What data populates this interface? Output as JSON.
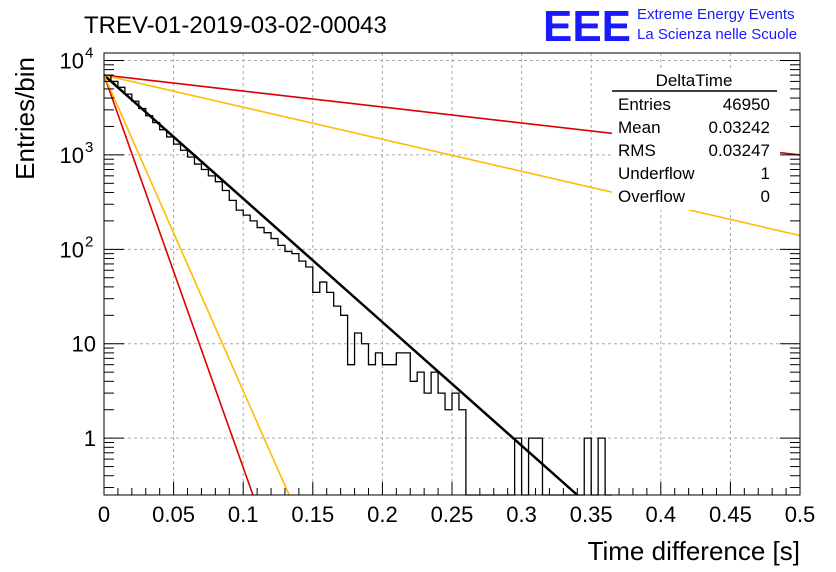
{
  "chart_data": {
    "type": "line",
    "title": "TREV-01-2019-03-02-00043",
    "xlabel": "Time difference [s]",
    "ylabel": "Entries/bin",
    "x_range": [
      0,
      0.5
    ],
    "y_range": [
      0.25,
      12000
    ],
    "y_scale": "log",
    "grid": true,
    "x_ticks": [
      "0",
      "0.05",
      "0.1",
      "0.15",
      "0.2",
      "0.25",
      "0.3",
      "0.35",
      "0.4",
      "0.45",
      "0.5"
    ],
    "x_tick_values": [
      0,
      0.05,
      0.1,
      0.15,
      0.2,
      0.25,
      0.3,
      0.35,
      0.4,
      0.45,
      0.5
    ],
    "y_ticks": [
      {
        "value": 1,
        "base": "1",
        "exp": ""
      },
      {
        "value": 10,
        "base": "10",
        "exp": ""
      },
      {
        "value": 100,
        "base": "10",
        "exp": "2"
      },
      {
        "value": 1000,
        "base": "10",
        "exp": "3"
      },
      {
        "value": 10000,
        "base": "10",
        "exp": "4"
      }
    ],
    "histogram": {
      "bin_width": 0.005,
      "x_start": 0,
      "counts": [
        7000,
        6000,
        5200,
        4400,
        3700,
        3100,
        2600,
        2200,
        1850,
        1550,
        1300,
        1120,
        950,
        800,
        700,
        600,
        520,
        420,
        330,
        260,
        230,
        200,
        170,
        150,
        130,
        110,
        95,
        90,
        75,
        65,
        35,
        45,
        35,
        25,
        20,
        6,
        13,
        10,
        6,
        8,
        6,
        6,
        8,
        8,
        4,
        5,
        3,
        5,
        3,
        2,
        3,
        2,
        0,
        0,
        0,
        0,
        0,
        0,
        0,
        1,
        0,
        1,
        1,
        0,
        0,
        0,
        0,
        0,
        0,
        1,
        0,
        1,
        0
      ]
    },
    "series": [
      {
        "label": "black fit",
        "color": "#000000",
        "x": [
          0,
          0.34
        ],
        "y": [
          7000,
          0.25
        ]
      },
      {
        "label": "red steep",
        "color": "#dd0000",
        "x": [
          0,
          0.107
        ],
        "y": [
          7000,
          0.25
        ]
      },
      {
        "label": "orange steep",
        "color": "#ffbb00",
        "x": [
          0,
          0.133
        ],
        "y": [
          7000,
          0.25
        ]
      },
      {
        "label": "red shallow",
        "color": "#dd0000",
        "x": [
          0,
          0.5
        ],
        "y": [
          7000,
          1000
        ]
      },
      {
        "label": "orange shallow",
        "color": "#ffbb00",
        "x": [
          0,
          0.5
        ],
        "y": [
          7000,
          140
        ]
      }
    ],
    "stats_box": {
      "title": "DeltaTime",
      "rows": [
        {
          "label": "Entries",
          "value": "46950"
        },
        {
          "label": "Mean",
          "value": "0.03242"
        },
        {
          "label": "RMS",
          "value": "0.03247"
        },
        {
          "label": "Underflow",
          "value": "1"
        },
        {
          "label": "Overflow",
          "value": "0"
        }
      ]
    }
  },
  "logo": {
    "mark": "EEE",
    "line1": "Extreme Energy Events",
    "line2": "La Scienza nelle Scuole",
    "color": "#1a1aff"
  }
}
